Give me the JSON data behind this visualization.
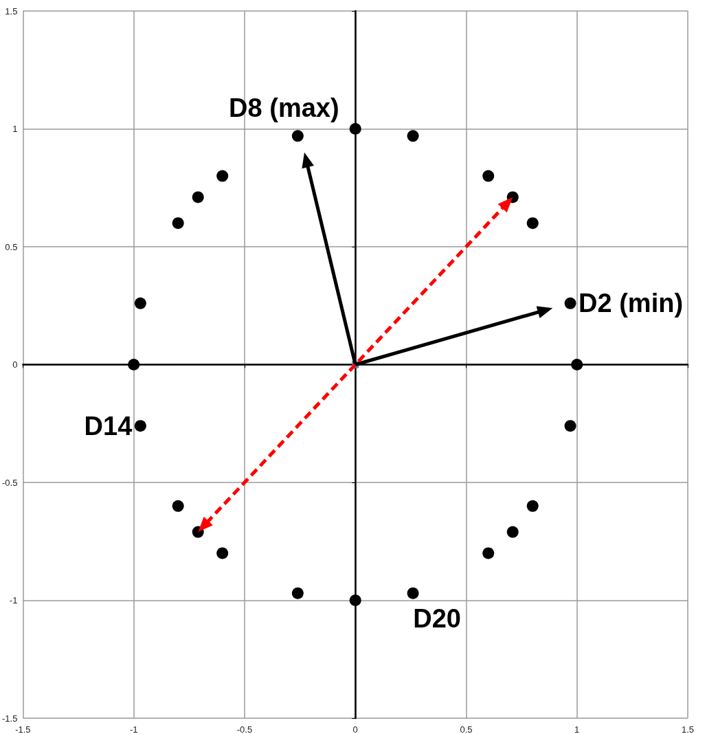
{
  "chart_data": {
    "type": "scatter",
    "xlim": [
      -1.5,
      1.5
    ],
    "xticks": [
      -1.5,
      -1,
      -0.5,
      0,
      0.5,
      1,
      1.5
    ],
    "ylim": [
      -1.5,
      1.5
    ],
    "yticks": [
      -1.5,
      -1,
      -0.5,
      0,
      0.5,
      1,
      1.5
    ],
    "grid": true,
    "series": [
      {
        "color": "#000000",
        "marker": "circle",
        "x": [
          1,
          0.97,
          0.8,
          0.71,
          0.6,
          0.26,
          0,
          -0.26,
          -0.6,
          -0.71,
          -0.8,
          -0.97,
          -1,
          -0.97,
          -0.8,
          -0.71,
          -0.6,
          -0.26,
          0,
          0.26,
          0.6,
          0.71,
          0.8,
          0.97
        ],
        "values": [
          0,
          0.26,
          0.6,
          0.71,
          0.8,
          0.97,
          1,
          0.97,
          0.8,
          0.71,
          0.6,
          0.26,
          0,
          -0.26,
          -0.6,
          -0.71,
          -0.8,
          -0.97,
          -1,
          -0.97,
          -0.8,
          -0.71,
          -0.6,
          -0.26
        ]
      },
      {
        "color": "#4f81bd",
        "marker": "square",
        "x": [
          0
        ],
        "values": [
          0
        ]
      }
    ],
    "annotations": [
      {
        "text": "D8 (max)",
        "x": -0.26,
        "y": 0.97
      },
      {
        "text": "D2 (min)",
        "x": 0.97,
        "y": 0.26
      },
      {
        "text": "D14",
        "x": -0.97,
        "y": -0.26
      },
      {
        "text": "D20",
        "x": 0.26,
        "y": -0.97
      }
    ]
  }
}
